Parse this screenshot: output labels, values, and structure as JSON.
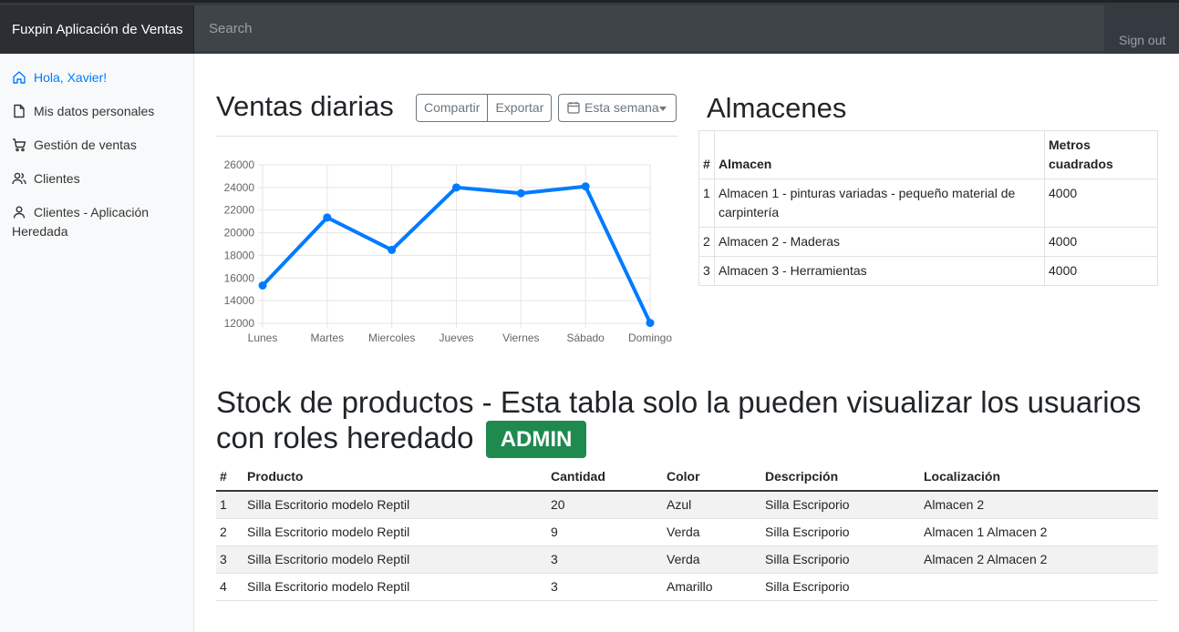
{
  "app": {
    "brand": "Fuxpin Aplicación de Ventas",
    "search_placeholder": "Search",
    "signout_label": "Sign out"
  },
  "sidebar": {
    "items": [
      {
        "label": "Hola, Xavier!",
        "icon": "home-icon",
        "active": true
      },
      {
        "label": "Mis datos personales",
        "icon": "file-icon"
      },
      {
        "label": "Gestión de ventas",
        "icon": "cart-icon"
      },
      {
        "label": "Clientes",
        "icon": "users-icon"
      },
      {
        "label": "Clientes - Aplicación Heredada",
        "icon": "user-icon"
      }
    ]
  },
  "ventas": {
    "title": "Ventas diarias",
    "share_label": "Compartir",
    "export_label": "Exportar",
    "period_label": "Esta semana"
  },
  "chart_data": {
    "type": "line",
    "categories": [
      "Lunes",
      "Martes",
      "Miercoles",
      "Jueves",
      "Viernes",
      "Sábado",
      "Domingo"
    ],
    "values": [
      15339,
      21345,
      18483,
      24003,
      23489,
      24092,
      12034
    ],
    "ylim": [
      12000,
      26000
    ],
    "yticks": [
      "12000",
      "14000",
      "16000",
      "18000",
      "20000",
      "22000",
      "24000",
      "26000"
    ],
    "grid": true,
    "color": "#007bff"
  },
  "almacenes": {
    "title": "Almacenes",
    "headers": [
      "#",
      "Almacen",
      "Metros cuadrados"
    ],
    "rows": [
      [
        "1",
        "Almacen 1 - pinturas variadas - pequeño material de carpintería",
        "4000"
      ],
      [
        "2",
        "Almacen 2 - Maderas",
        "4000"
      ],
      [
        "3",
        "Almacen 3 - Herramientas",
        "4000"
      ]
    ]
  },
  "stock": {
    "title": "Stock de productos - Esta tabla solo la pueden visualizar los usuarios con roles heredado",
    "badge": "ADMIN",
    "badge_color": "#1e8a4f",
    "headers": [
      "#",
      "Producto",
      "Cantidad",
      "Color",
      "Descripción",
      "Localización"
    ],
    "rows": [
      [
        "1",
        "Silla Escritorio modelo Reptil",
        "20",
        "Azul",
        "Silla Escriporio",
        "Almacen 2"
      ],
      [
        "2",
        "Silla Escritorio modelo Reptil",
        "9",
        "Verda",
        "Silla Escriporio",
        "Almacen 1 Almacen 2"
      ],
      [
        "3",
        "Silla Escritorio modelo Reptil",
        "3",
        "Verda",
        "Silla Escriporio",
        "Almacen 2 Almacen 2"
      ],
      [
        "4",
        "Silla Escritorio modelo Reptil",
        "3",
        "Amarillo",
        "Silla Escriporio",
        ""
      ]
    ]
  }
}
